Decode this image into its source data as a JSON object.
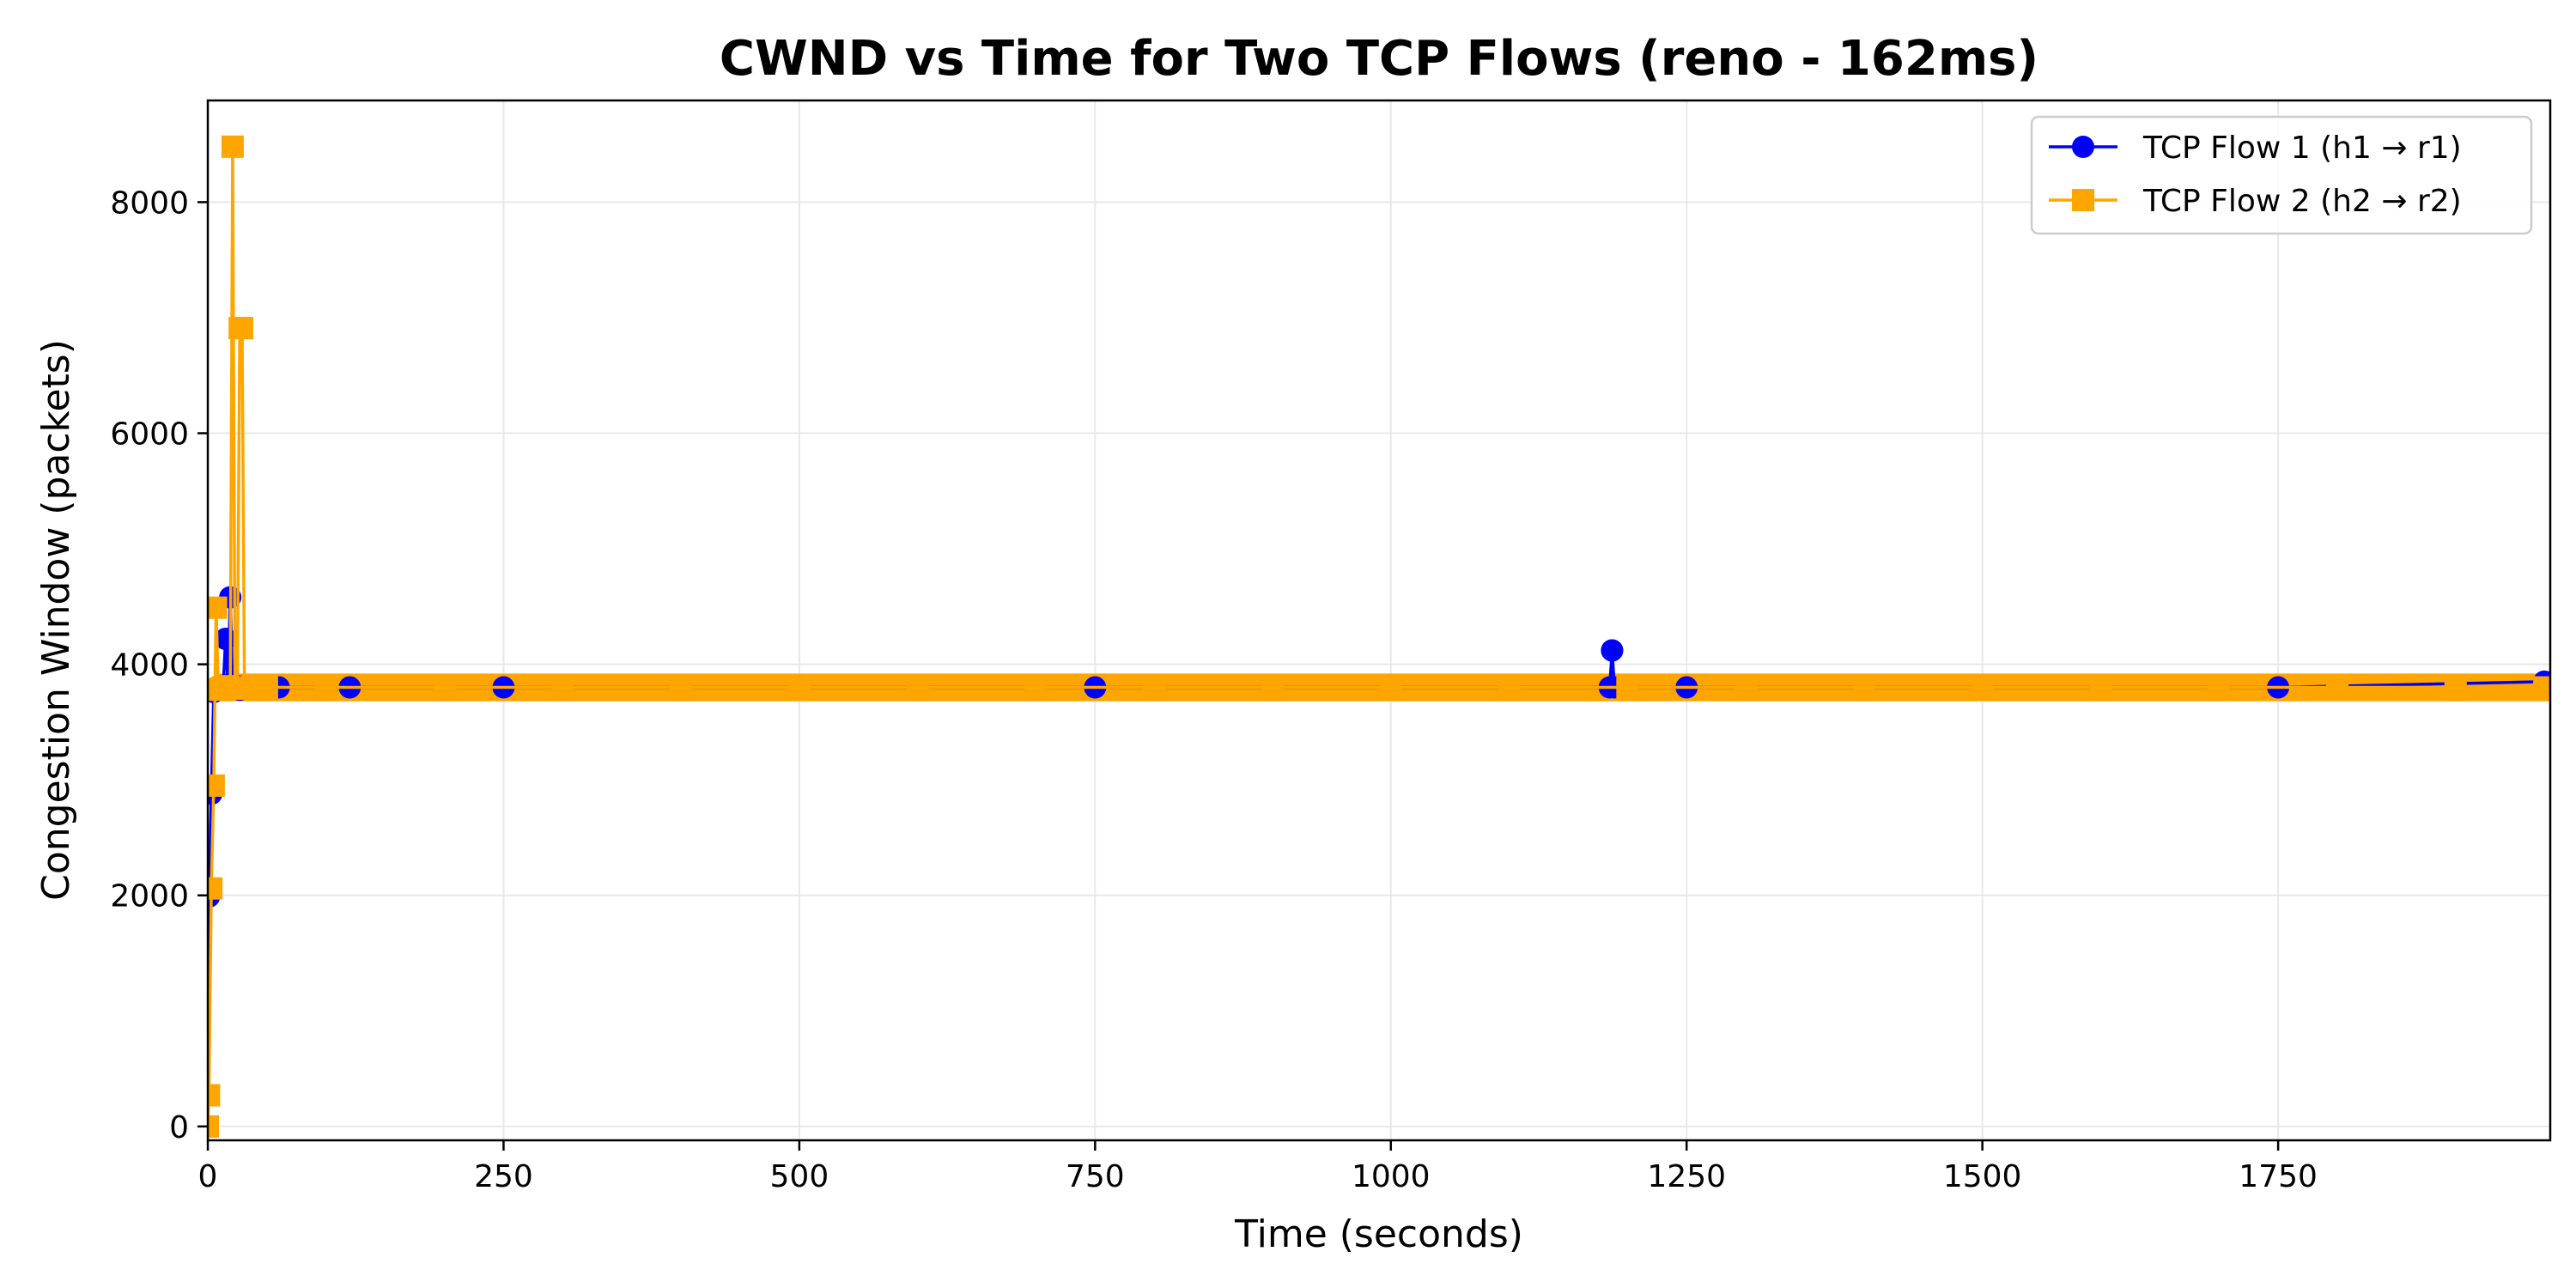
{
  "chart_data": {
    "type": "line",
    "title": "CWND vs Time for Two TCP Flows (reno - 162ms)",
    "xlabel": "Time (seconds)",
    "ylabel": "Congestion Window (packets)",
    "xlim": [
      0,
      1980
    ],
    "ylim": [
      -120,
      8880
    ],
    "xticks": [
      0,
      250,
      500,
      750,
      1000,
      1250,
      1500,
      1750
    ],
    "yticks": [
      0,
      2000,
      4000,
      6000,
      8000
    ],
    "grid": true,
    "legend_position": "top-right",
    "series": [
      {
        "name": "TCP Flow 1 (h1 → r1)",
        "color": "#0000ff",
        "marker": "circle",
        "x": [
          0,
          1,
          3,
          5,
          7,
          9,
          11,
          13,
          15,
          17,
          19,
          21,
          23,
          25,
          27,
          29,
          31,
          33,
          60,
          120,
          250,
          500,
          750,
          1000,
          1185,
          1187,
          1189,
          1250,
          1500,
          1750,
          1975
        ],
        "y": [
          0,
          1990,
          2880,
          3760,
          3780,
          3790,
          3810,
          3800,
          4220,
          3820,
          4580,
          3790,
          3800,
          3810,
          3780,
          3800,
          3790,
          3800,
          3800,
          3800,
          3800,
          3800,
          3800,
          3800,
          3800,
          4120,
          3800,
          3800,
          3800,
          3800,
          3850
        ]
      },
      {
        "name": "TCP Flow 2 (h2 → r2)",
        "color": "#ffa500",
        "marker": "square",
        "x": [
          0,
          1,
          3,
          5,
          7,
          9,
          11,
          13,
          15,
          17,
          19,
          21,
          23,
          25,
          27,
          29,
          31,
          33,
          35,
          40,
          50,
          100,
          200,
          300,
          400,
          500,
          600,
          700,
          800,
          900,
          1000,
          1100,
          1200,
          1300,
          1400,
          1500,
          1600,
          1700,
          1800,
          1900,
          1975
        ],
        "y": [
          0,
          270,
          2060,
          2950,
          4490,
          3780,
          3790,
          3800,
          3810,
          3800,
          3790,
          8480,
          3800,
          3790,
          6910,
          6910,
          3800,
          3790,
          3800,
          3800,
          3800,
          3800,
          3800,
          3800,
          3800,
          3800,
          3800,
          3800,
          3800,
          3800,
          3800,
          3800,
          3800,
          3800,
          3800,
          3800,
          3800,
          3800,
          3800,
          3800,
          3800
        ]
      }
    ]
  }
}
